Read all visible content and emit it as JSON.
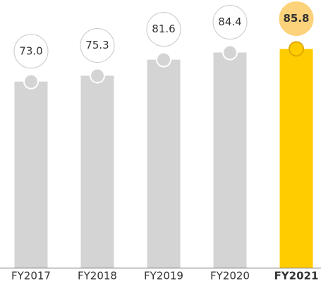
{
  "chart_data": {
    "type": "bar",
    "categories": [
      "FY2017",
      "FY2018",
      "FY2019",
      "FY2020",
      "FY2021"
    ],
    "values": [
      73.0,
      75.3,
      81.6,
      84.4,
      85.8
    ],
    "value_labels": [
      "73.0",
      "75.3",
      "81.6",
      "84.4",
      "85.8"
    ],
    "color": "#d4d4d4",
    "highlight_index": 4,
    "highlight_color": "#ffcc00",
    "ylim": [
      0,
      105
    ]
  }
}
